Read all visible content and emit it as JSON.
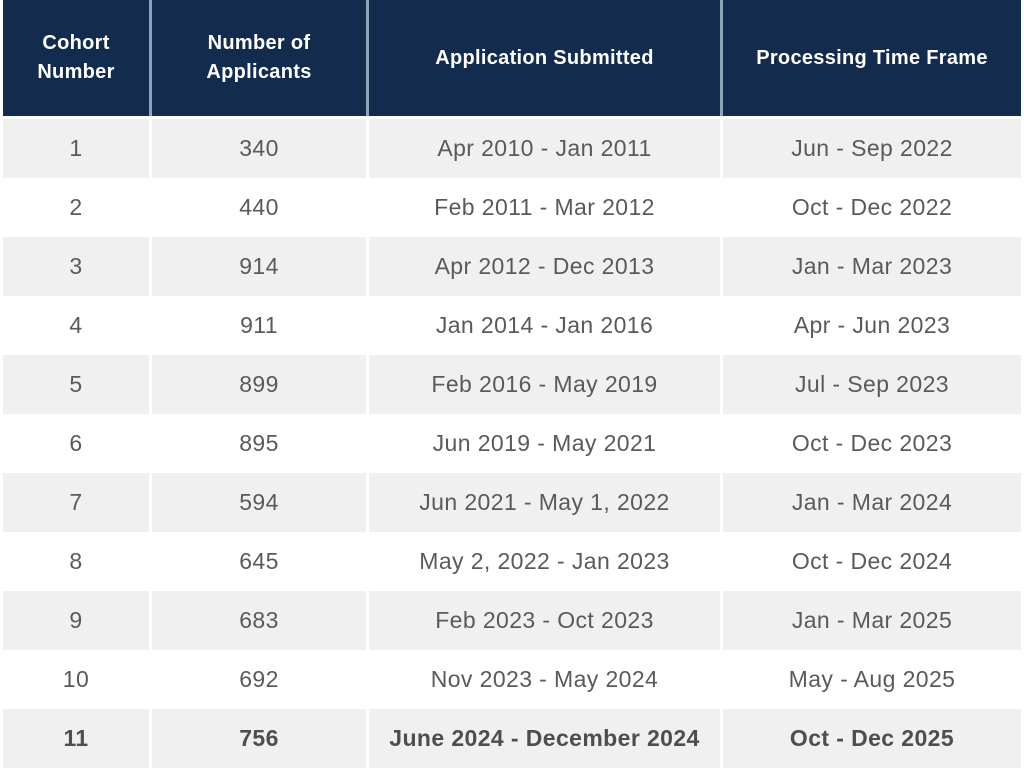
{
  "chart_data": {
    "type": "table",
    "columns": [
      "Cohort Number",
      "Number of Applicants",
      "Application Submitted",
      "Processing Time Frame"
    ],
    "rows": [
      [
        "1",
        "340",
        "Apr 2010 - Jan 2011",
        "Jun - Sep 2022"
      ],
      [
        "2",
        "440",
        "Feb 2011 - Mar 2012",
        "Oct - Dec 2022"
      ],
      [
        "3",
        "914",
        "Apr 2012 - Dec 2013",
        "Jan - Mar 2023"
      ],
      [
        "4",
        "911",
        "Jan 2014 - Jan 2016",
        "Apr - Jun 2023"
      ],
      [
        "5",
        "899",
        "Feb 2016 - May 2019",
        "Jul - Sep 2023"
      ],
      [
        "6",
        "895",
        "Jun 2019 - May 2021",
        "Oct - Dec 2023"
      ],
      [
        "7",
        "594",
        "Jun 2021 - May 1, 2022",
        "Jan - Mar 2024"
      ],
      [
        "8",
        "645",
        "May 2, 2022 - Jan 2023",
        "Oct - Dec 2024"
      ],
      [
        "9",
        "683",
        "Feb 2023 - Oct 2023",
        "Jan - Mar 2025"
      ],
      [
        "10",
        "692",
        "Nov 2023 - May 2024",
        "May - Aug 2025"
      ],
      [
        "11",
        "756",
        "June 2024 - December 2024",
        "Oct - Dec 2025"
      ]
    ],
    "layout": {
      "striped": true,
      "stripe_pattern": "odd-rows-gray",
      "last_row_bold": true,
      "legend_position": "none",
      "grid": "column-gaps-only"
    },
    "colors": {
      "header_bg": "#132b4d",
      "header_text": "#ffffff",
      "header_divider": "#8fa3b8",
      "stripe_bg": "#f0f0f0",
      "row_bg": "#ffffff",
      "body_text": "#5a5a5a",
      "bold_row_text": "#4e4e4e"
    }
  }
}
